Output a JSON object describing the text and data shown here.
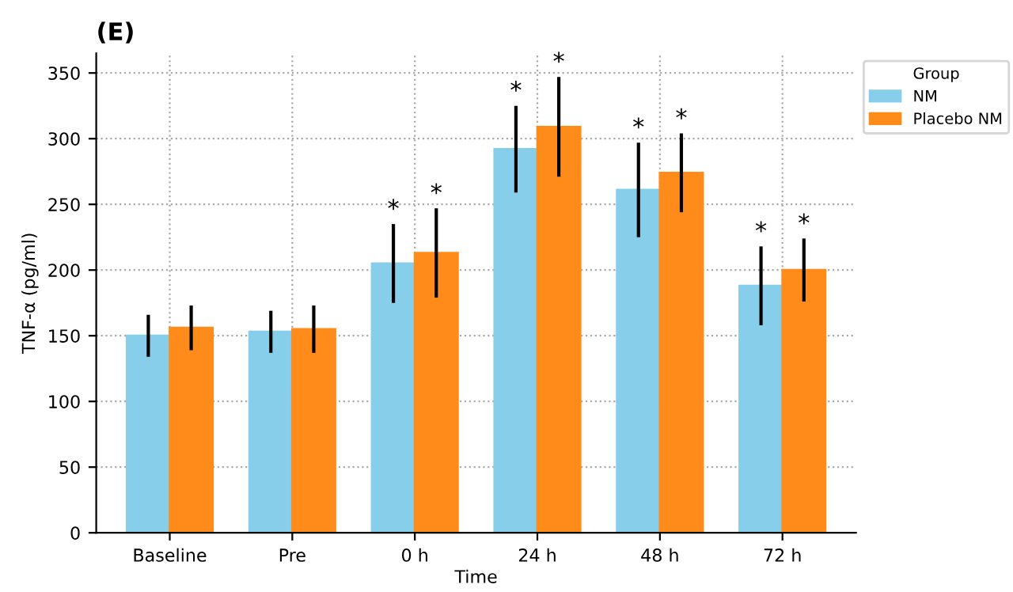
{
  "chart_data": {
    "type": "bar",
    "title": "(E)",
    "xlabel": "Time",
    "ylabel": "TNF-α (pg/ml)",
    "legend_title": "Group",
    "legend": "top right",
    "categories": [
      "Baseline",
      "Pre",
      "0 h",
      "24 h",
      "48 h",
      "72 h"
    ],
    "series": [
      {
        "name": "NM",
        "color": "#87ceeb",
        "values": [
          150,
          153,
          205,
          292,
          261,
          188
        ],
        "errors": [
          16,
          16,
          30,
          33,
          36,
          30
        ]
      },
      {
        "name": "Placebo NM",
        "color": "#ff8c1a",
        "values": [
          156,
          155,
          213,
          309,
          274,
          200
        ],
        "errors": [
          17,
          18,
          34,
          38,
          30,
          24
        ]
      }
    ],
    "annotations": [
      "*",
      "*",
      "*",
      "*",
      "*",
      "*",
      "*",
      "*"
    ],
    "ylim": [
      0,
      365
    ],
    "yticks": [
      0,
      50,
      100,
      150,
      200,
      250,
      300,
      350
    ],
    "grid": true
  }
}
